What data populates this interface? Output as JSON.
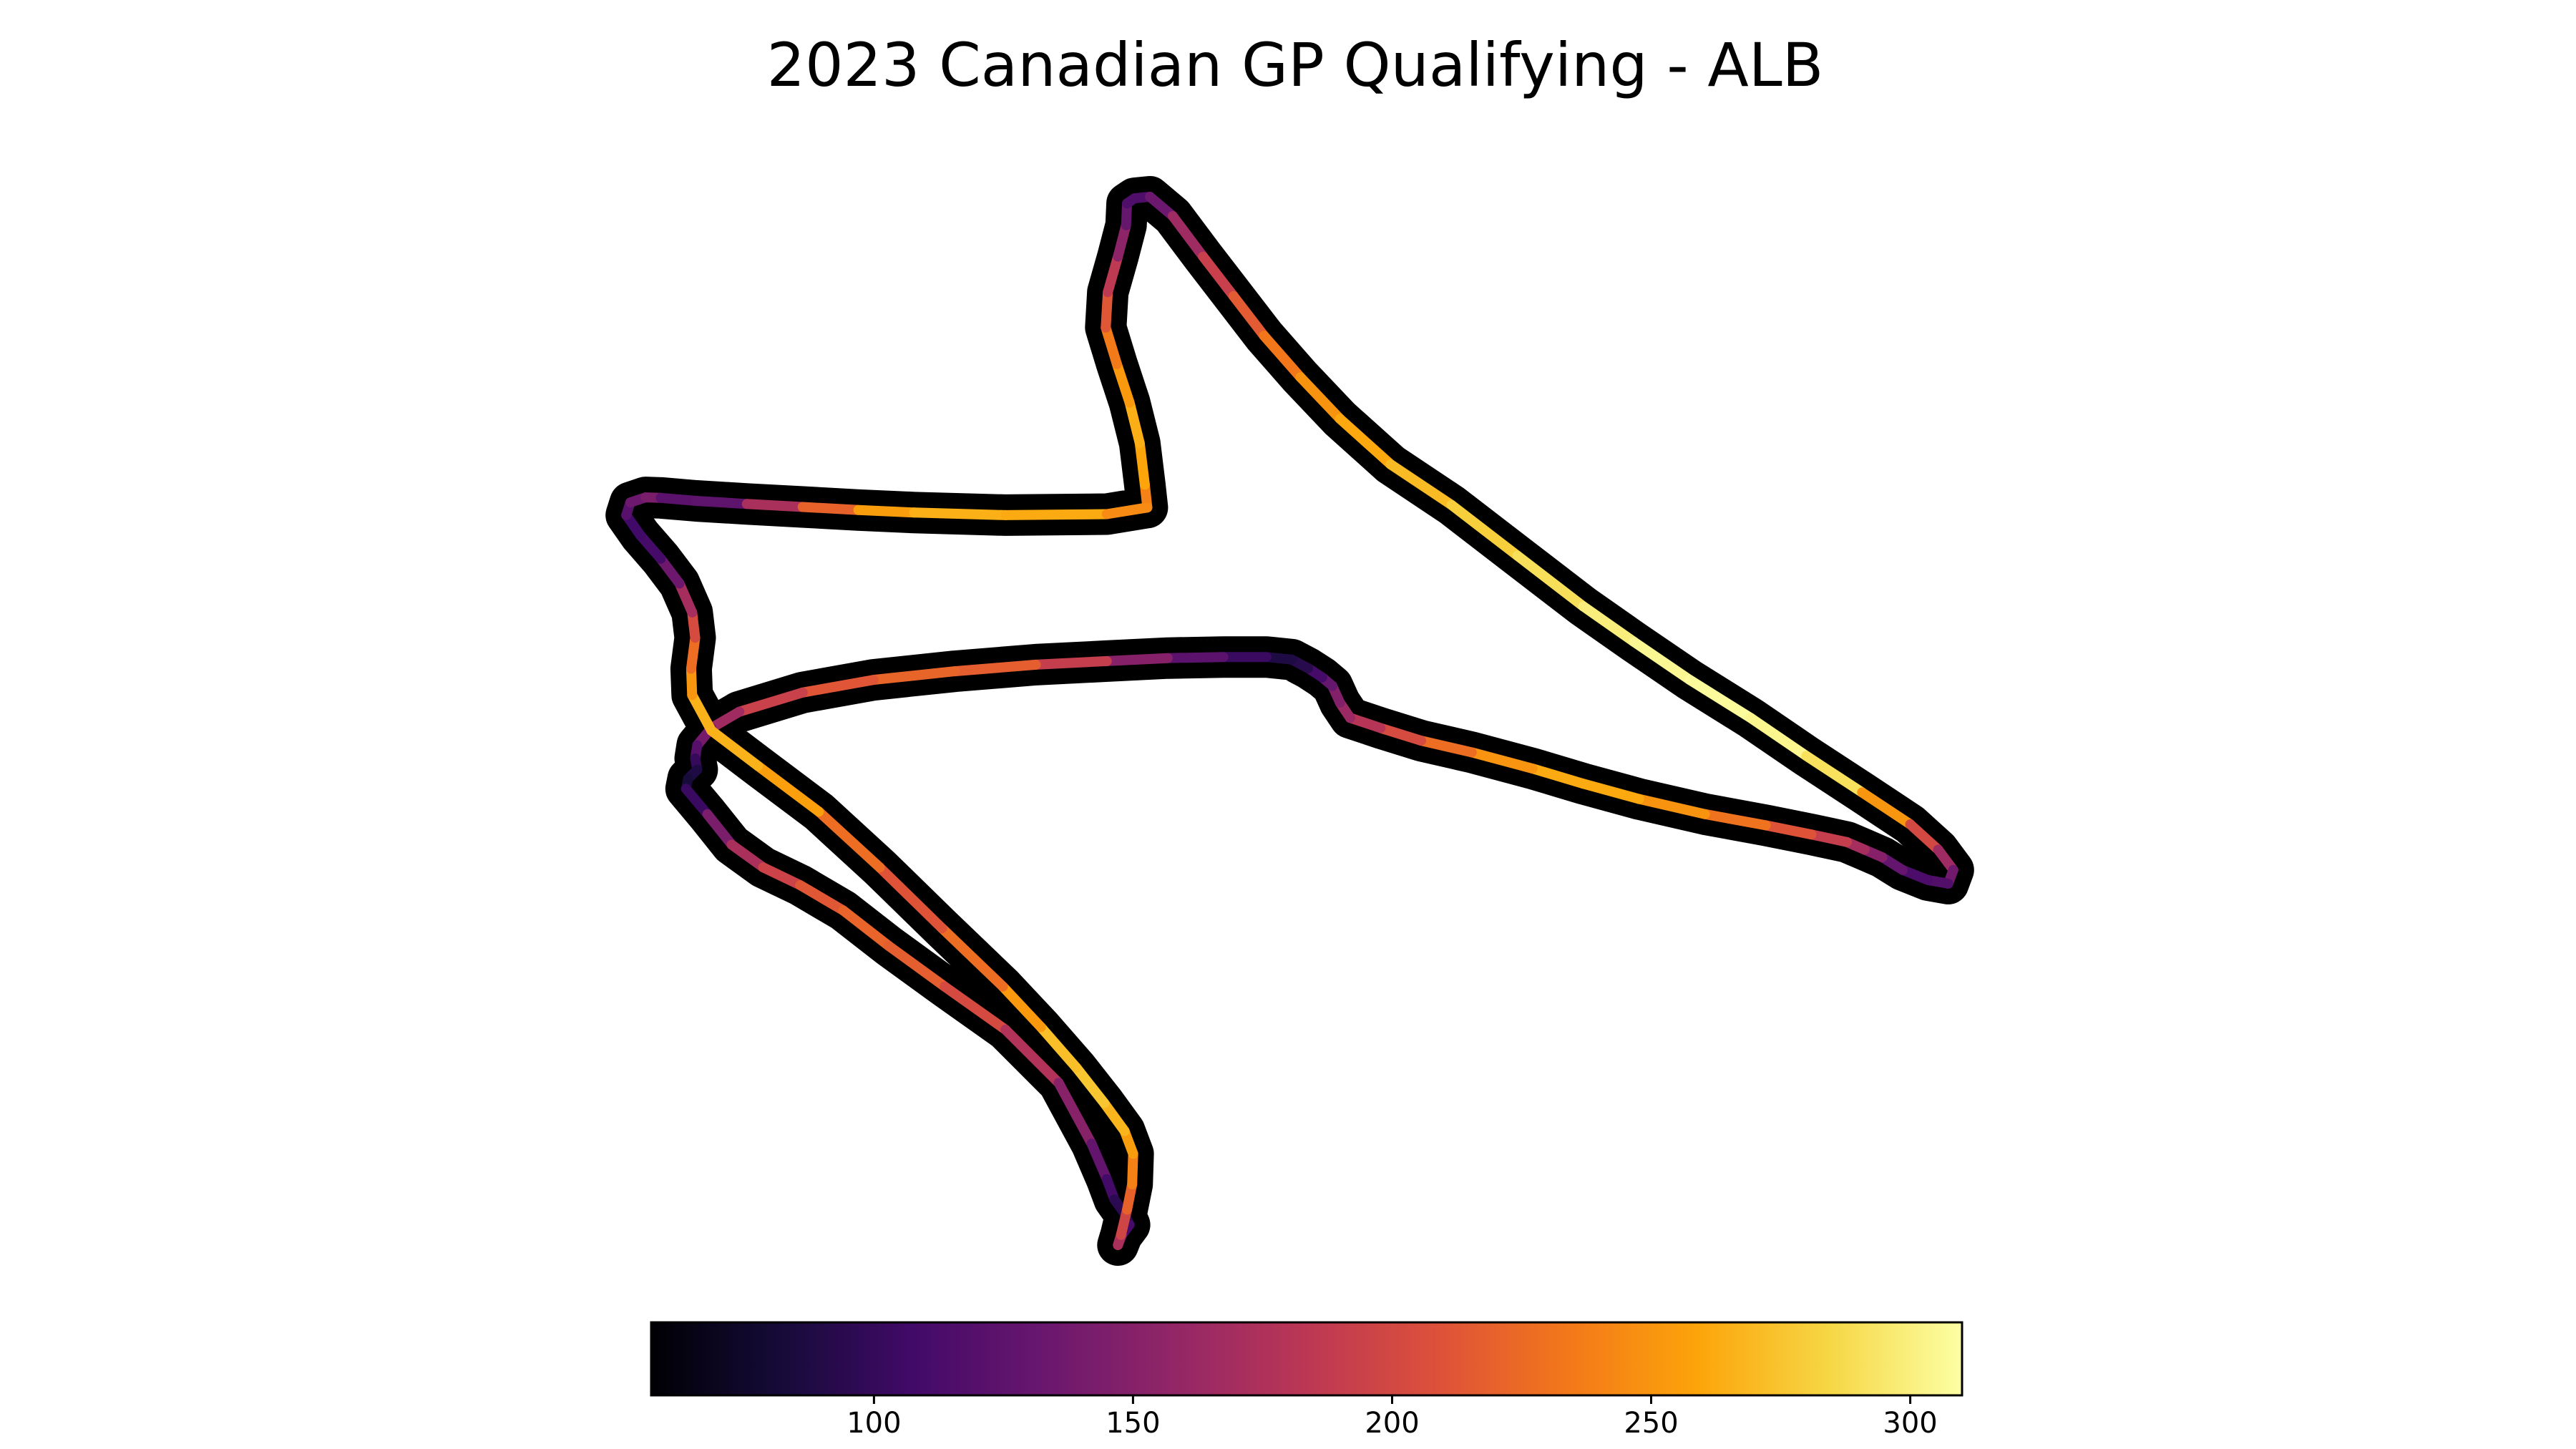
{
  "chart_data": {
    "type": "line",
    "title": "2023 Canadian GP Qualifying - ALB",
    "xlabel": "",
    "ylabel": "",
    "grid": false,
    "axes_visible": false,
    "color_variable_range": [
      57,
      310
    ],
    "colormap": "inferno",
    "track_outline_color": "#000000",
    "colorbar": {
      "orientation": "horizontal",
      "placement": "bottom",
      "range": [
        57,
        310
      ],
      "ticks": [
        100,
        150,
        200,
        250,
        300
      ],
      "tick_labels": [
        "100",
        "150",
        "200",
        "250",
        "300"
      ]
    },
    "series": [
      {
        "x": [
          -1420,
          -1425,
          -1435,
          -1455,
          -1480,
          -1502,
          -1498,
          -1478,
          -1462,
          -1460,
          -1445,
          -1415,
          -1370,
          -1310,
          -1250,
          -1190,
          -1118,
          -1040,
          -940,
          -820,
          -690,
          -560,
          -460,
          -350,
          -230,
          -120,
          -10,
          85,
          140,
          170,
          160,
          120,
          70,
          30,
          -5,
          -40,
          -110,
          -200,
          -320,
          -450,
          -560,
          -660,
          -780,
          -880,
          -960,
          -1020,
          -1040,
          -1055,
          -1075,
          -1103,
          -1135,
          -1185,
          -1270,
          -1380,
          -1500,
          -1640,
          -1800,
          -1960,
          -2100,
          -2225,
          -2280,
          -2308,
          -2312,
          -2308,
          -2326,
          -2330,
          -2288,
          -2240,
          -2178,
          -2105,
          -2020,
          -1930,
          -1820,
          -1700,
          -1595,
          -1530,
          -1500,
          -1485,
          -1465,
          -1455,
          -1470,
          -1478,
          -1472,
          -1460,
          -1450,
          -1448,
          -1465,
          -1505,
          -1560,
          -1630,
          -1705,
          -1825,
          -1948,
          -2068,
          -2188,
          -2280,
          -2318,
          -2320,
          -2312,
          -2318,
          -2343,
          -2380,
          -2420,
          -2448,
          -2440,
          -2410,
          -2380,
          -2310,
          -2210,
          -2100,
          -1990,
          -1880,
          -1700,
          -1500,
          -1420
        ],
        "y": [
          -745,
          -700,
          -618,
          -538,
          -462,
          -390,
          -320,
          -250,
          -188,
          -145,
          -135,
          -132,
          -170,
          -250,
          -328,
          -406,
          -488,
          -570,
          -660,
          -740,
          -840,
          -940,
          -1010,
          -1085,
          -1160,
          -1235,
          -1307,
          -1370,
          -1420,
          -1460,
          -1487,
          -1480,
          -1460,
          -1435,
          -1420,
          -1405,
          -1390,
          -1372,
          -1350,
          -1320,
          -1290,
          -1260,
          -1228,
          -1205,
          -1180,
          -1160,
          -1130,
          -1097,
          -1080,
          -1062,
          -1045,
          -1040,
          -1040,
          -1042,
          -1048,
          -1055,
          -1068,
          -1085,
          -1110,
          -1148,
          -1180,
          -1214,
          -1240,
          -1262,
          -1280,
          -1300,
          -1350,
          -1410,
          -1455,
          -1490,
          -1540,
          -1610,
          -1690,
          -1775,
          -1880,
          -2000,
          -2070,
          -2110,
          -2138,
          -2160,
          -2180,
          -2200,
          -2180,
          -2130,
          -2080,
          -2020,
          -1975,
          -1920,
          -1850,
          -1770,
          -1690,
          -1575,
          -1455,
          -1345,
          -1255,
          -1185,
          -1115,
          -1063,
          -1002,
          -952,
          -895,
          -846,
          -800,
          -760,
          -735,
          -725,
          -726,
          -732,
          -738,
          -744,
          -750,
          -755,
          -760,
          -758,
          -745
        ],
        "speed": [
          230,
          250,
          268,
          260,
          245,
          225,
          200,
          170,
          140,
          120,
          112,
          118,
          150,
          180,
          205,
          225,
          242,
          256,
          266,
          275,
          285,
          295,
          303,
          308,
          308,
          300,
          282,
          220,
          180,
          150,
          125,
          110,
          118,
          140,
          160,
          180,
          200,
          220,
          240,
          258,
          265,
          260,
          240,
          215,
          190,
          170,
          155,
          140,
          120,
          100,
          85,
          90,
          115,
          130,
          170,
          210,
          225,
          218,
          205,
          182,
          150,
          130,
          110,
          90,
          85,
          80,
          125,
          160,
          185,
          205,
          220,
          222,
          212,
          192,
          162,
          140,
          117,
          100,
          90,
          95,
          125,
          160,
          185,
          210,
          230,
          248,
          262,
          272,
          280,
          265,
          240,
          215,
          205,
          250,
          262,
          270,
          262,
          240,
          215,
          190,
          150,
          120,
          100,
          115,
          128,
          140,
          145,
          100,
          150,
          195,
          245,
          265,
          265,
          260,
          230
        ]
      }
    ]
  }
}
